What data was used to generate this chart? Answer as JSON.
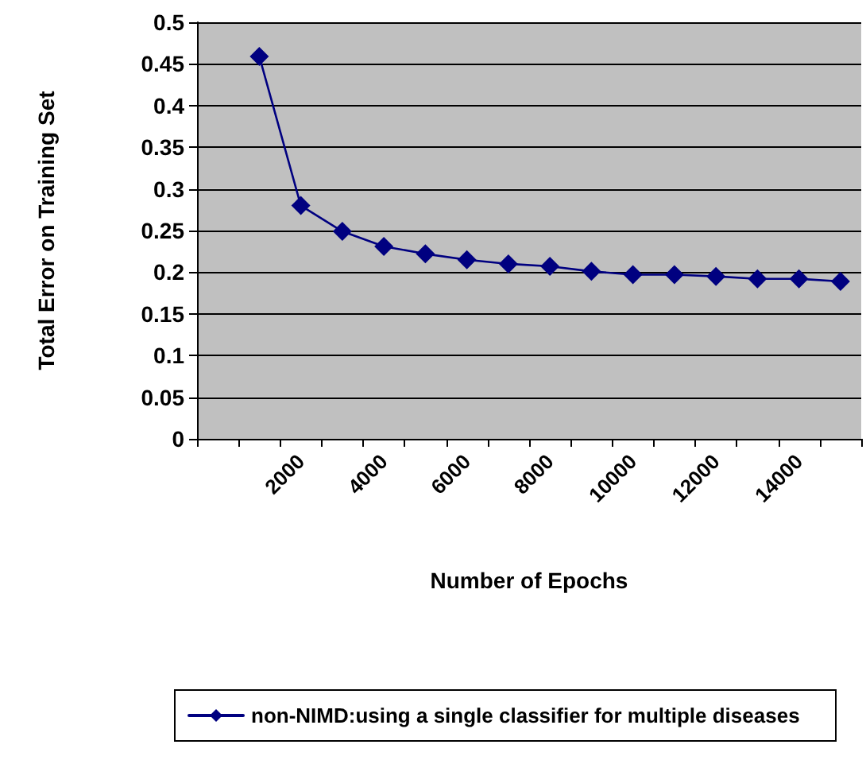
{
  "chart_data": {
    "type": "line",
    "xlabel": "Number of Epochs",
    "ylabel": "Total Error on Training Set",
    "categories": [
      null,
      null,
      "2000",
      null,
      "4000",
      null,
      "6000",
      null,
      "8000",
      null,
      "10000",
      null,
      "12000",
      null,
      "14000",
      null
    ],
    "series": [
      {
        "name": "non-NIMD:using a single classifier for multiple diseases",
        "color": "#000080",
        "values": [
          null,
          0.459,
          0.28,
          0.249,
          0.231,
          0.222,
          0.215,
          0.21,
          0.207,
          0.201,
          0.197,
          0.197,
          0.195,
          0.192,
          0.192,
          0.189
        ]
      }
    ],
    "ylim": [
      0,
      0.5
    ],
    "yticks": [
      0,
      0.05,
      0.1,
      0.15,
      0.2,
      0.25,
      0.3,
      0.35,
      0.4,
      0.45,
      0.5
    ],
    "grid": "y",
    "legend": "bottom",
    "marker": "diamond",
    "line_style": "solid"
  }
}
